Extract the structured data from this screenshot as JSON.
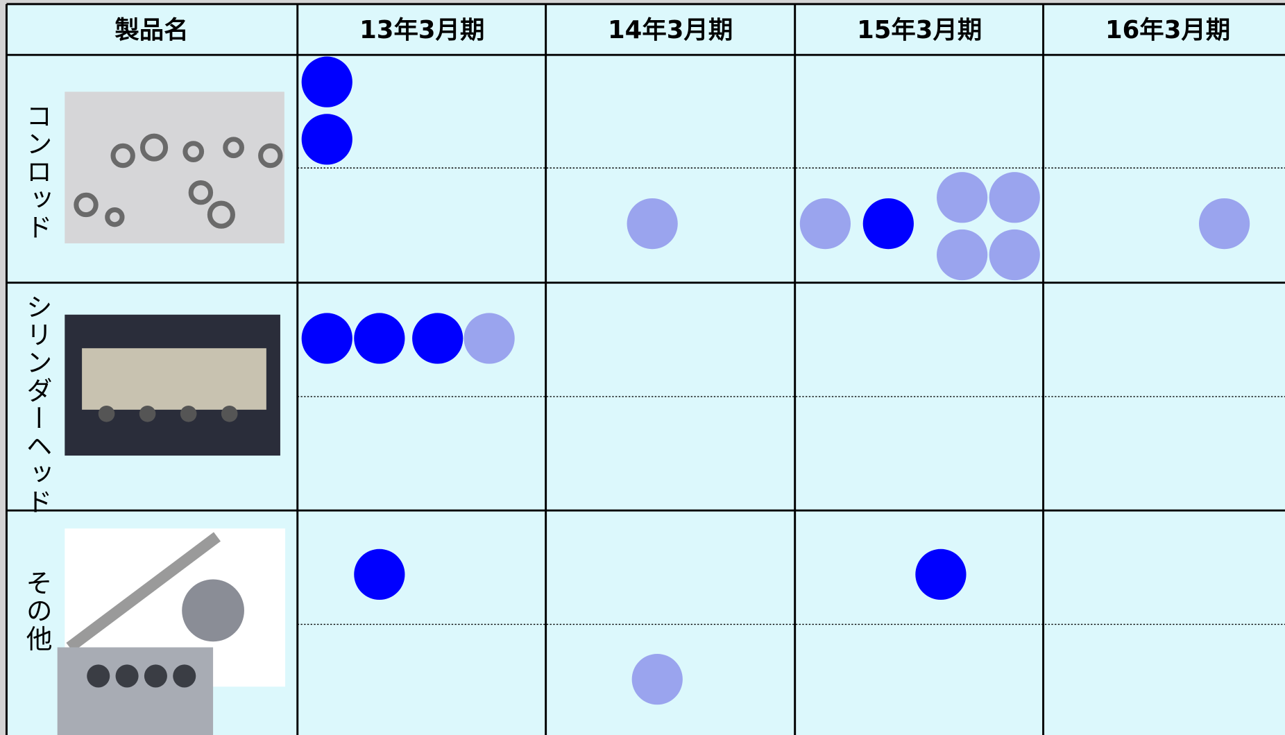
{
  "header": {
    "columns": [
      "製品名",
      "13年3月期",
      "14年3月期",
      "15年3月期",
      "16年3月期"
    ]
  },
  "rows": [
    {
      "label": "コンロッド"
    },
    {
      "label": "シリンダーヘッド"
    },
    {
      "label": "その他"
    }
  ]
}
